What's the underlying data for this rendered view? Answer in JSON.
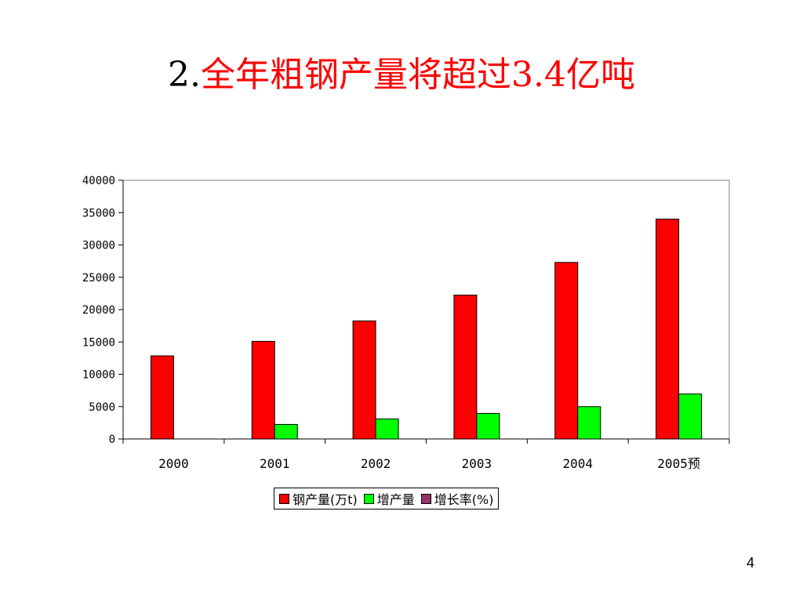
{
  "slide": {
    "title_number": "2.",
    "title_text": "全年粗钢产量将超过3.4亿吨",
    "page_number": "4"
  },
  "colors": {
    "title_text": "#ff0000",
    "steel": "#ff0000",
    "increase": "#00ff00",
    "rate": "#993366"
  },
  "chart_data": {
    "type": "bar",
    "categories": [
      "2000",
      "2001",
      "2002",
      "2003",
      "2004",
      "2005预"
    ],
    "series": [
      {
        "name": "钢产量(万t)",
        "values": [
          12850,
          15100,
          18250,
          22250,
          27300,
          34000
        ]
      },
      {
        "name": "增产量",
        "values": [
          null,
          2250,
          3100,
          3950,
          5000,
          6950
        ]
      },
      {
        "name": "增长率(%)",
        "values": [
          null,
          null,
          null,
          null,
          null,
          null
        ]
      }
    ],
    "yticks": [
      "0",
      "5000",
      "10000",
      "15000",
      "20000",
      "25000",
      "30000",
      "35000",
      "40000"
    ],
    "ylim": [
      0,
      40000
    ],
    "grid": false,
    "legend_position": "bottom"
  }
}
